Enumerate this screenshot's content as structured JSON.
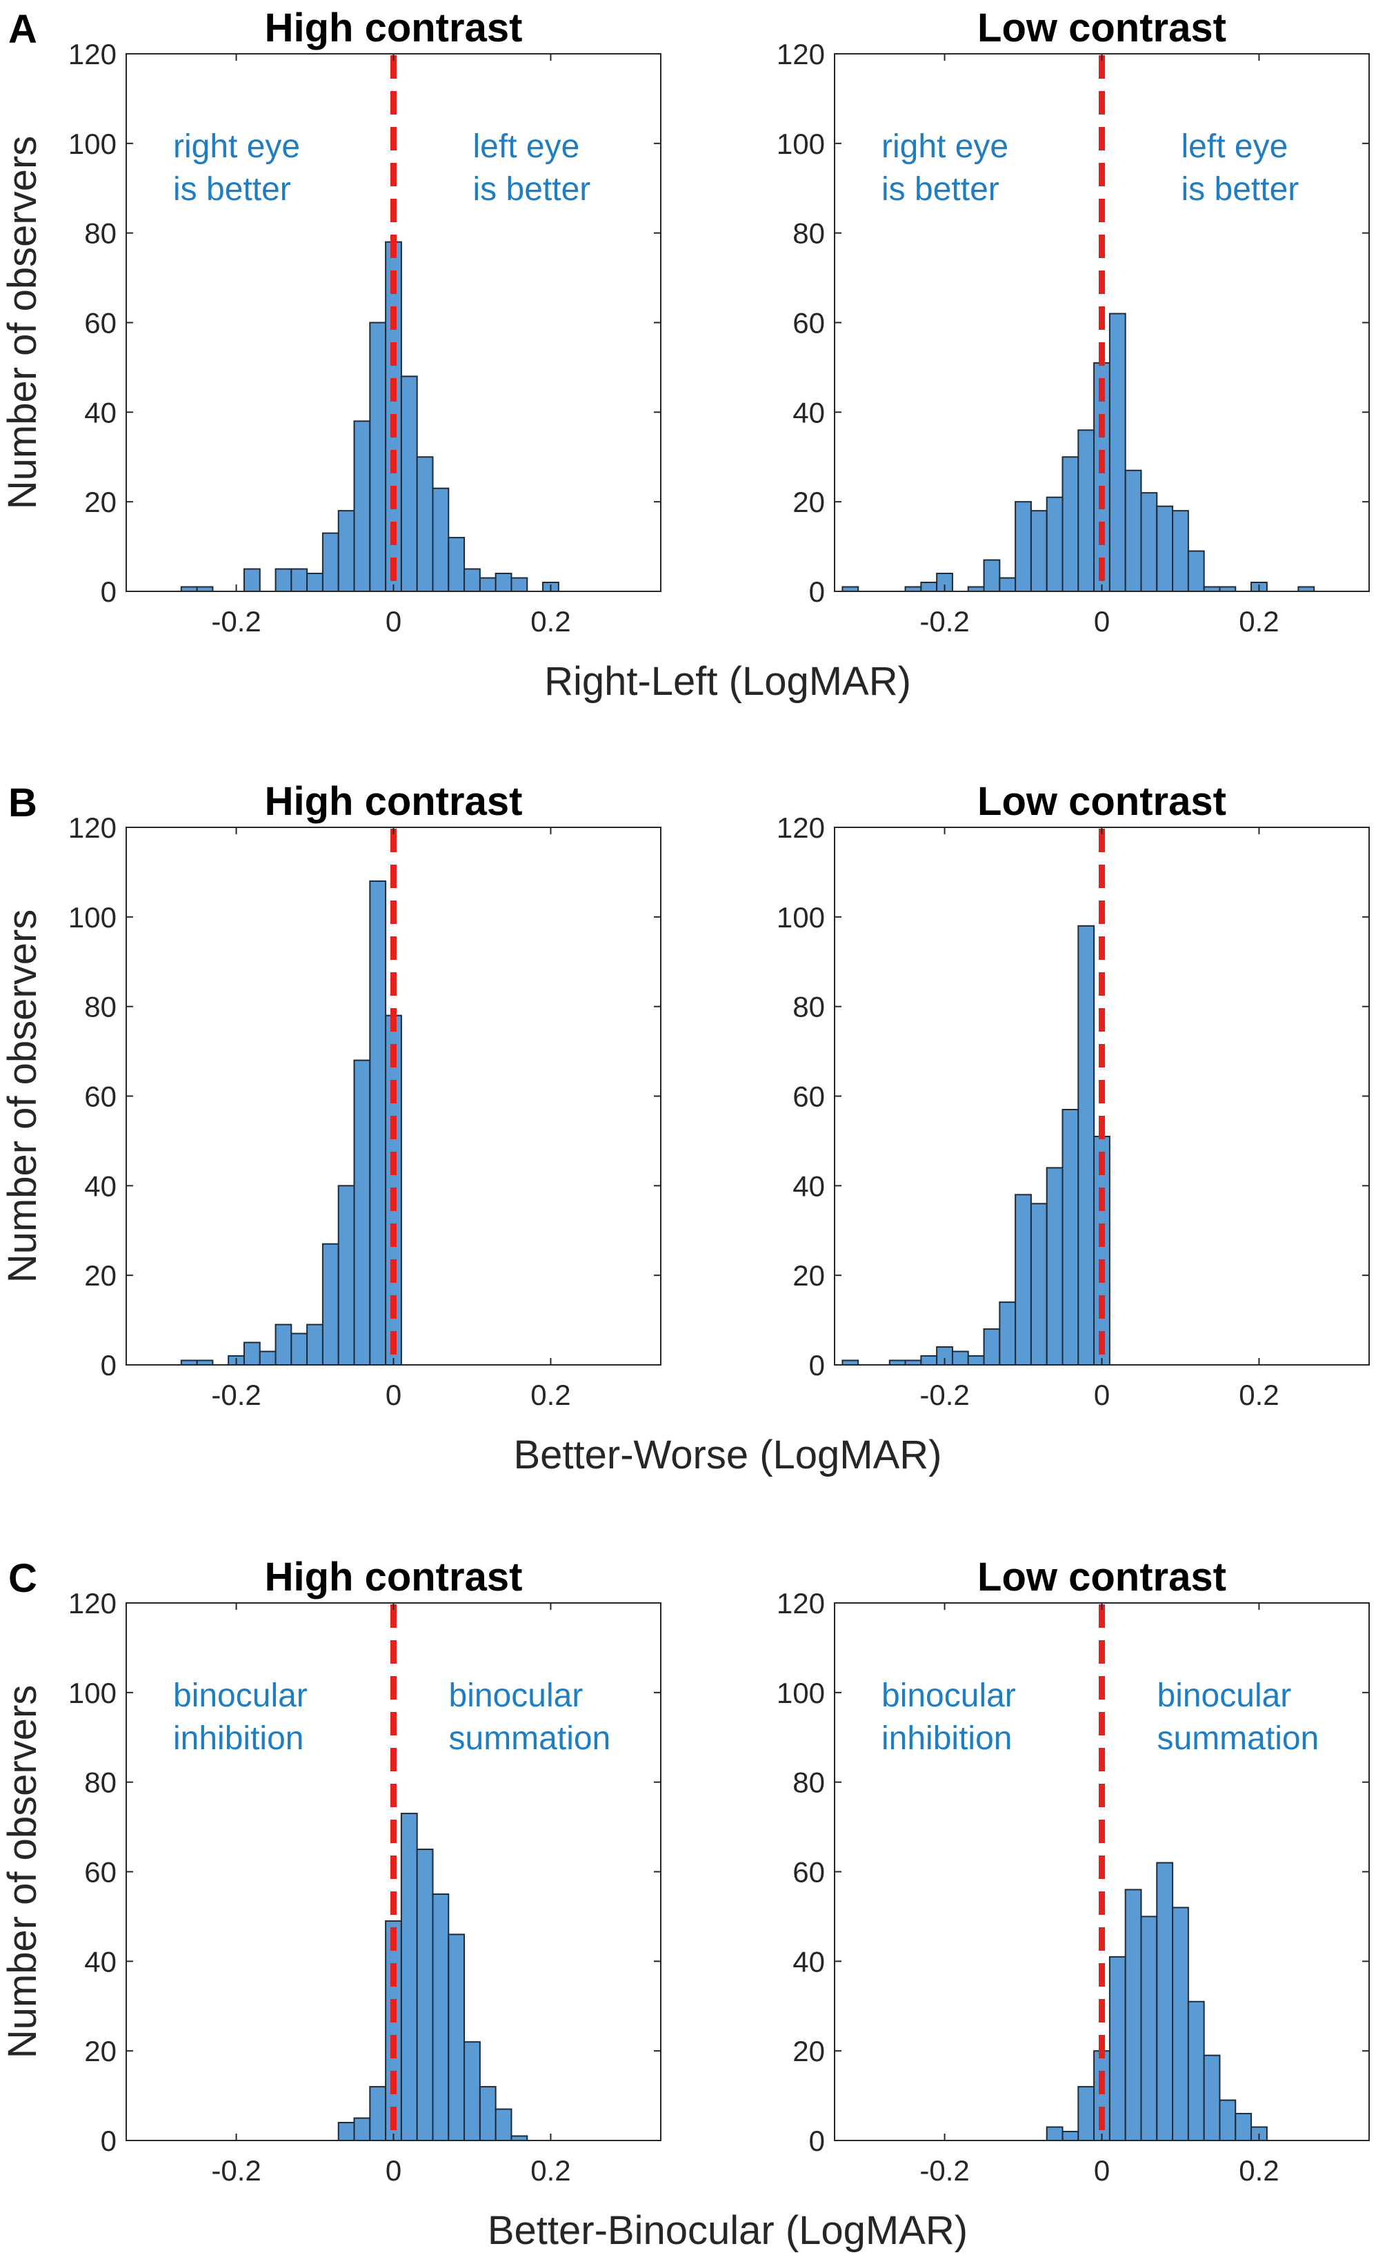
{
  "panels": [
    {
      "letter": "A",
      "xlabel": "Right-Left (LogMAR)"
    },
    {
      "letter": "B",
      "xlabel": "Better-Worse (LogMAR)"
    },
    {
      "letter": "C",
      "xlabel": "Better-Binocular (LogMAR)"
    }
  ],
  "ylabel": "Number of observers",
  "colors": {
    "bar": "#5b9bd5",
    "bar_edge": "#1f2a36",
    "reference_line": "#e8201b",
    "annotation": "#1f7ec1"
  },
  "chart_data": [
    {
      "id": "A-high",
      "panel": "A",
      "type": "bar",
      "title": "High contrast",
      "xlim": [
        -0.34,
        0.34
      ],
      "ylim": [
        0,
        120
      ],
      "xticks": [
        -0.2,
        0,
        0.2
      ],
      "xtick_labels": [
        "-0.2",
        "0",
        "0.2"
      ],
      "yticks": [
        0,
        20,
        40,
        60,
        80,
        100,
        120
      ],
      "ytick_labels": [
        "0",
        "20",
        "40",
        "60",
        "80",
        "100",
        "120"
      ],
      "bin_width": 0.02,
      "reference_x": 0,
      "x": [
        -0.26,
        -0.24,
        -0.18,
        -0.14,
        -0.12,
        -0.1,
        -0.08,
        -0.06,
        -0.04,
        -0.02,
        0.0,
        0.02,
        0.04,
        0.06,
        0.08,
        0.1,
        0.12,
        0.14,
        0.16,
        0.2
      ],
      "values": [
        1,
        1,
        5,
        5,
        5,
        4,
        13,
        18,
        38,
        60,
        78,
        48,
        30,
        23,
        12,
        5,
        3,
        4,
        3,
        2
      ],
      "annotations": [
        {
          "lines": [
            "right eye",
            "is better"
          ],
          "side": "left"
        },
        {
          "lines": [
            "left eye",
            "is better"
          ],
          "side": "right"
        }
      ]
    },
    {
      "id": "A-low",
      "panel": "A",
      "type": "bar",
      "title": "Low contrast",
      "xlim": [
        -0.34,
        0.34
      ],
      "ylim": [
        0,
        120
      ],
      "xticks": [
        -0.2,
        0,
        0.2
      ],
      "xtick_labels": [
        "-0.2",
        "0",
        "0.2"
      ],
      "yticks": [
        0,
        20,
        40,
        60,
        80,
        100,
        120
      ],
      "ytick_labels": [
        "0",
        "20",
        "40",
        "60",
        "80",
        "100",
        "120"
      ],
      "bin_width": 0.02,
      "reference_x": 0,
      "x": [
        -0.32,
        -0.24,
        -0.22,
        -0.2,
        -0.16,
        -0.14,
        -0.12,
        -0.1,
        -0.08,
        -0.06,
        -0.04,
        -0.02,
        0.0,
        0.02,
        0.04,
        0.06,
        0.08,
        0.1,
        0.12,
        0.14,
        0.16,
        0.2,
        0.26
      ],
      "values": [
        1,
        1,
        2,
        4,
        1,
        7,
        3,
        20,
        18,
        21,
        30,
        36,
        51,
        62,
        27,
        22,
        19,
        18,
        9,
        1,
        1,
        2,
        1
      ],
      "annotations": [
        {
          "lines": [
            "right eye",
            "is better"
          ],
          "side": "left"
        },
        {
          "lines": [
            "left eye",
            "is better"
          ],
          "side": "right"
        }
      ]
    },
    {
      "id": "B-high",
      "panel": "B",
      "type": "bar",
      "title": "High contrast",
      "xlim": [
        -0.34,
        0.34
      ],
      "ylim": [
        0,
        120
      ],
      "xticks": [
        -0.2,
        0,
        0.2
      ],
      "xtick_labels": [
        "-0.2",
        "0",
        "0.2"
      ],
      "yticks": [
        0,
        20,
        40,
        60,
        80,
        100,
        120
      ],
      "ytick_labels": [
        "0",
        "20",
        "40",
        "60",
        "80",
        "100",
        "120"
      ],
      "bin_width": 0.02,
      "reference_x": 0,
      "x": [
        -0.26,
        -0.24,
        -0.2,
        -0.18,
        -0.16,
        -0.14,
        -0.12,
        -0.1,
        -0.08,
        -0.06,
        -0.04,
        -0.02,
        0.0
      ],
      "values": [
        1,
        1,
        2,
        5,
        3,
        9,
        7,
        9,
        27,
        40,
        68,
        108,
        78
      ],
      "annotations": []
    },
    {
      "id": "B-low",
      "panel": "B",
      "type": "bar",
      "title": "Low contrast",
      "xlim": [
        -0.34,
        0.34
      ],
      "ylim": [
        0,
        120
      ],
      "xticks": [
        -0.2,
        0,
        0.2
      ],
      "xtick_labels": [
        "-0.2",
        "0",
        "0.2"
      ],
      "yticks": [
        0,
        20,
        40,
        60,
        80,
        100,
        120
      ],
      "ytick_labels": [
        "0",
        "20",
        "40",
        "60",
        "80",
        "100",
        "120"
      ],
      "bin_width": 0.02,
      "reference_x": 0,
      "x": [
        -0.32,
        -0.26,
        -0.24,
        -0.22,
        -0.2,
        -0.18,
        -0.16,
        -0.14,
        -0.12,
        -0.1,
        -0.08,
        -0.06,
        -0.04,
        -0.02,
        0.0
      ],
      "values": [
        1,
        1,
        1,
        2,
        4,
        3,
        2,
        8,
        14,
        38,
        36,
        44,
        57,
        98,
        51
      ],
      "annotations": []
    },
    {
      "id": "C-high",
      "panel": "C",
      "type": "bar",
      "title": "High contrast",
      "xlim": [
        -0.34,
        0.34
      ],
      "ylim": [
        0,
        120
      ],
      "xticks": [
        -0.2,
        0,
        0.2
      ],
      "xtick_labels": [
        "-0.2",
        "0",
        "0.2"
      ],
      "yticks": [
        0,
        20,
        40,
        60,
        80,
        100,
        120
      ],
      "ytick_labels": [
        "0",
        "20",
        "40",
        "60",
        "80",
        "100",
        "120"
      ],
      "bin_width": 0.02,
      "reference_x": 0,
      "x": [
        -0.06,
        -0.04,
        -0.02,
        0.0,
        0.02,
        0.04,
        0.06,
        0.08,
        0.1,
        0.12,
        0.14,
        0.16
      ],
      "values": [
        4,
        5,
        12,
        49,
        73,
        65,
        55,
        46,
        22,
        12,
        7,
        1
      ],
      "annotations": [
        {
          "lines": [
            "binocular",
            "inhibition"
          ],
          "side": "left"
        },
        {
          "lines": [
            "binocular",
            "summation"
          ],
          "side": "right"
        }
      ]
    },
    {
      "id": "C-low",
      "panel": "C",
      "type": "bar",
      "title": "Low contrast",
      "xlim": [
        -0.34,
        0.34
      ],
      "ylim": [
        0,
        120
      ],
      "xticks": [
        -0.2,
        0,
        0.2
      ],
      "xtick_labels": [
        "-0.2",
        "0",
        "0.2"
      ],
      "yticks": [
        0,
        20,
        40,
        60,
        80,
        100,
        120
      ],
      "ytick_labels": [
        "0",
        "20",
        "40",
        "60",
        "80",
        "100",
        "120"
      ],
      "bin_width": 0.02,
      "reference_x": 0,
      "x": [
        -0.06,
        -0.04,
        -0.02,
        0.0,
        0.02,
        0.04,
        0.06,
        0.08,
        0.1,
        0.12,
        0.14,
        0.16,
        0.18,
        0.2
      ],
      "values": [
        3,
        2,
        12,
        20,
        41,
        56,
        50,
        62,
        52,
        31,
        19,
        9,
        6,
        3
      ],
      "annotations": [
        {
          "lines": [
            "binocular",
            "inhibition"
          ],
          "side": "left"
        },
        {
          "lines": [
            "binocular",
            "summation"
          ],
          "side": "right"
        }
      ]
    }
  ]
}
